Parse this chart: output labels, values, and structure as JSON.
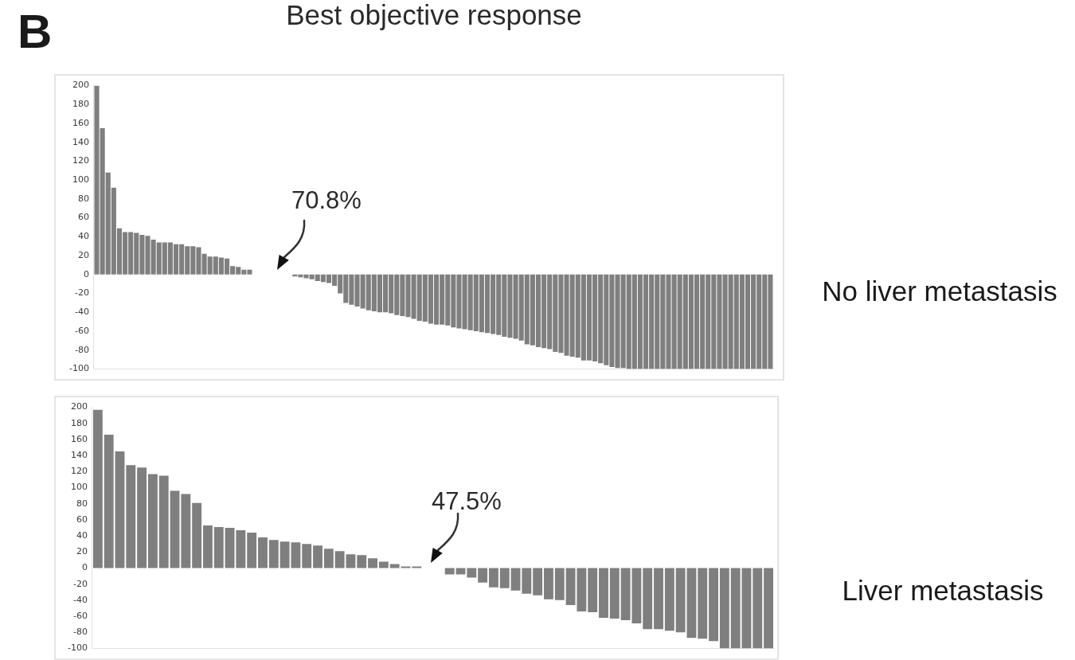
{
  "chart_data": [
    {
      "type": "bar",
      "title": "Best objective response",
      "annotations": [
        "B",
        "No liver metastasis",
        {
          "text": "70.8%",
          "y": 0
        }
      ],
      "categories": [
        null,
        null,
        null,
        null,
        null,
        null,
        null,
        null,
        null,
        null,
        null,
        null,
        null,
        null,
        null,
        null,
        null,
        null,
        null,
        null,
        null,
        null,
        null,
        null,
        null,
        null,
        null,
        null,
        null,
        null,
        null,
        null,
        null,
        null,
        null,
        null,
        null,
        null,
        null,
        null,
        null,
        null,
        null,
        null,
        null,
        null,
        null,
        null,
        null,
        null,
        null,
        null,
        null,
        null,
        null,
        null,
        null,
        null,
        null,
        null,
        null,
        null,
        null,
        null,
        null,
        null,
        null,
        null,
        null,
        null,
        null,
        null,
        null,
        null,
        null,
        null,
        null,
        null,
        null,
        null,
        null,
        null,
        null,
        null,
        null,
        null,
        null,
        null,
        null,
        null,
        null,
        null,
        null,
        null,
        null,
        null,
        null,
        null,
        null,
        null,
        null,
        null,
        null,
        null,
        null,
        null,
        null,
        null,
        null,
        null,
        null,
        null,
        null,
        null,
        null,
        null,
        null,
        null,
        null,
        null
      ],
      "values": [
        200,
        155,
        108,
        92,
        49,
        45,
        45,
        44,
        42,
        41,
        37,
        34,
        34,
        34,
        32,
        32,
        30,
        30,
        29,
        22,
        19,
        19,
        18,
        17,
        9,
        8,
        5,
        5,
        null,
        null,
        null,
        null,
        null,
        null,
        null,
        -2,
        -3,
        -4,
        -5,
        -7,
        -8,
        -9,
        -12,
        -20,
        -30,
        -32,
        -34,
        -36,
        -38,
        -39,
        -40,
        -40,
        -41,
        -43,
        -44,
        -45,
        -47,
        -49,
        -50,
        -52,
        -53,
        -53,
        -54,
        -56,
        -57,
        -58,
        -59,
        -60,
        -61,
        -62,
        -63,
        -64,
        -66,
        -67,
        -68,
        -70,
        -74,
        -75,
        -77,
        -78,
        -79,
        -82,
        -83,
        -86,
        -87,
        -88,
        -91,
        -91,
        -92,
        -94,
        -96,
        -98,
        -99,
        -99,
        -100,
        -100,
        -100,
        -100,
        -100,
        -100,
        -100,
        -100,
        -100,
        -100,
        -100,
        -100,
        -100,
        -100,
        -100,
        -100,
        -100,
        -100,
        -100,
        -100,
        -100,
        -100,
        -100,
        -100,
        -100,
        -100
      ],
      "color": "#7f7f7f",
      "ylim": [
        -100,
        200
      ],
      "yticks": [
        -100,
        -80,
        -60,
        -40,
        -20,
        0,
        20,
        40,
        60,
        80,
        100,
        120,
        140,
        160,
        180,
        200
      ],
      "tick_labels": "y"
    },
    {
      "type": "bar",
      "annotations": [
        "Liver metastasis",
        {
          "text": "47.5%",
          "y": 0
        }
      ],
      "categories": [
        null,
        null,
        null,
        null,
        null,
        null,
        null,
        null,
        null,
        null,
        null,
        null,
        null,
        null,
        null,
        null,
        null,
        null,
        null,
        null,
        null,
        null,
        null,
        null,
        null,
        null,
        null,
        null,
        null,
        null,
        null,
        null,
        null,
        null,
        null,
        null,
        null,
        null,
        null,
        null,
        null,
        null,
        null,
        null,
        null,
        null,
        null,
        null,
        null,
        null,
        null,
        null,
        null,
        null,
        null,
        null,
        null,
        null,
        null,
        null,
        null,
        null
      ],
      "values": [
        197,
        166,
        145,
        128,
        125,
        117,
        115,
        96,
        92,
        81,
        53,
        51,
        50,
        47,
        44,
        38,
        35,
        33,
        32,
        30,
        28,
        24,
        21,
        17,
        16,
        12,
        8,
        5,
        2,
        2,
        null,
        null,
        -8,
        -8,
        -12,
        -18,
        -24,
        -25,
        -28,
        -32,
        -34,
        -39,
        -40,
        -46,
        -54,
        -55,
        -62,
        -63,
        -65,
        -69,
        -76,
        -76,
        -78,
        -80,
        -87,
        -88,
        -91,
        -100,
        -100,
        -100,
        -100,
        -100
      ],
      "color": "#7f7f7f",
      "ylim": [
        -100,
        200
      ],
      "yticks": [
        -100,
        -80,
        -60,
        -40,
        -20,
        0,
        20,
        40,
        60,
        80,
        100,
        120,
        140,
        160,
        180,
        200
      ],
      "tick_labels": "y"
    }
  ]
}
